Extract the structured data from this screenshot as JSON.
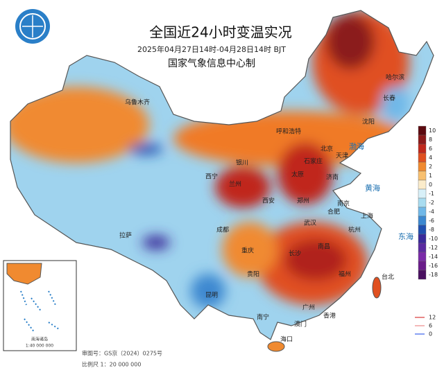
{
  "header": {
    "title": "全国近24小时变温实况",
    "subtitle": "2025年04月27日14时-04月28日14时 BJT",
    "org": "国家气象信息中心制"
  },
  "legend": {
    "items": [
      {
        "value": 10,
        "color": "#5c0a10"
      },
      {
        "value": 8,
        "color": "#8b1a1a"
      },
      {
        "value": 6,
        "color": "#c0281c"
      },
      {
        "value": 4,
        "color": "#e05020"
      },
      {
        "value": 2,
        "color": "#f08a30"
      },
      {
        "value": 1,
        "color": "#f8c070"
      },
      {
        "value": 0,
        "color": "#fbeccb"
      },
      {
        "value": -1,
        "color": "#d8f0f8"
      },
      {
        "value": -2,
        "color": "#a8dcf0"
      },
      {
        "value": -4,
        "color": "#70b8e8"
      },
      {
        "value": -6,
        "color": "#3c88d0"
      },
      {
        "value": -8,
        "color": "#2050b0"
      },
      {
        "value": -10,
        "color": "#3a2a9a"
      },
      {
        "value": -12,
        "color": "#5a2aa0"
      },
      {
        "value": -14,
        "color": "#7a2aa8"
      },
      {
        "value": -16,
        "color": "#6a1c8a"
      },
      {
        "value": -18,
        "color": "#4a1060"
      }
    ]
  },
  "contour_legend": [
    {
      "value": 12,
      "color": "#e06060"
    },
    {
      "value": 6,
      "color": "#f0a0a0"
    },
    {
      "value": 0,
      "color": "#6080f0"
    }
  ],
  "cities": [
    "乌鲁木齐",
    "呼和浩特",
    "银川",
    "北京",
    "天津",
    "石家庄",
    "太原",
    "济南",
    "西宁",
    "兰州",
    "郑州",
    "西安",
    "拉萨",
    "成都",
    "重庆",
    "武汉",
    "合肥",
    "南京",
    "上海",
    "杭州",
    "长沙",
    "南昌",
    "福州",
    "贵阳",
    "昆明",
    "南宁",
    "广州",
    "香港",
    "澳门",
    "海口",
    "台北",
    "哈尔滨",
    "长春",
    "沈阳"
  ],
  "seas": [
    "渤海",
    "黄海",
    "东海"
  ],
  "inset": {
    "label": "南海诸岛",
    "scale": "1:40 000 000"
  },
  "footer": {
    "approval": "审图号：GS京（2024）0275号",
    "scale": "比例尺 1：20 000 000"
  }
}
